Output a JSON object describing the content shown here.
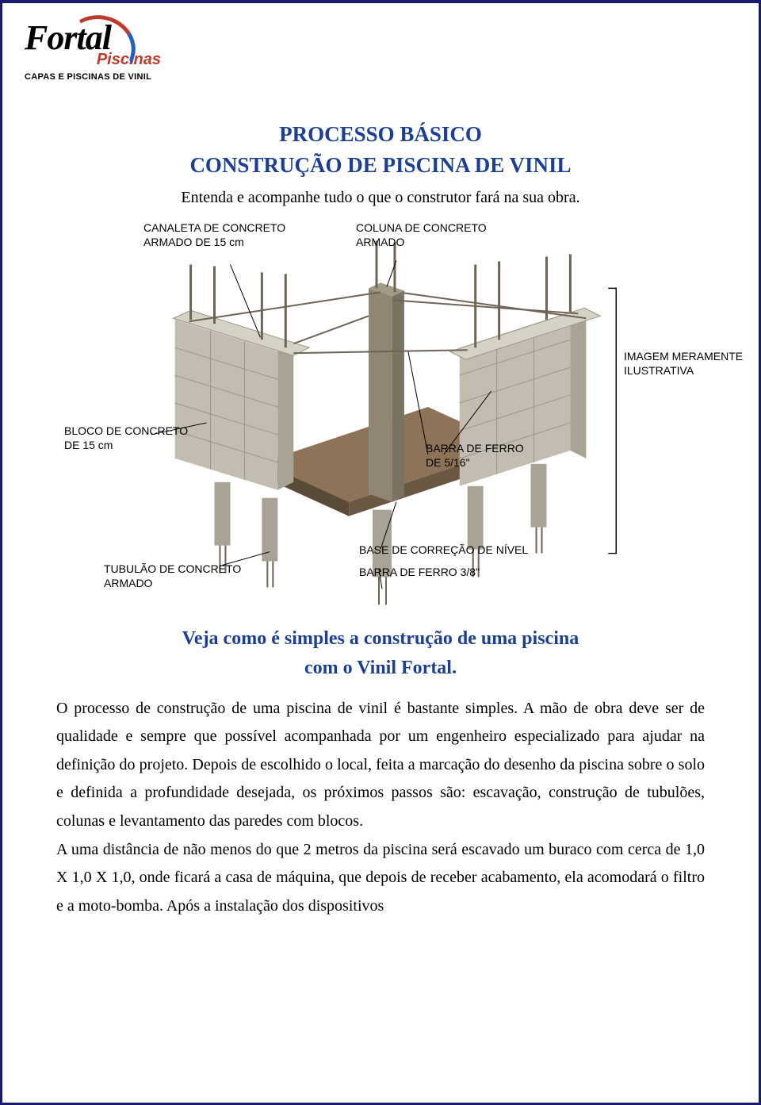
{
  "logo": {
    "main": "Fortal",
    "sub": "Piscinas",
    "tagline": "CAPAS E PISCINAS DE VINIL"
  },
  "header": {
    "title_line1": "PROCESSO BÁSICO",
    "title_line2": "CONSTRUÇÃO DE PISCINA DE VINIL",
    "intro": "Entenda e acompanhe tudo o que o construtor fará na sua obra."
  },
  "diagram": {
    "labels": {
      "canaleta": "CANALETA DE CONCRETO\nARMADO DE 15 cm",
      "coluna": "COLUNA DE CONCRETO\nARMADO",
      "imagem": "IMAGEM MERAMENTE\nILUSTRATIVA",
      "bloco": "BLOCO DE CONCRETO\nDE 15 cm",
      "barra516": "BARRA DE FERRO\nDE 5/16\"",
      "tubulao": "TUBULÃO DE CONCRETO\nARMADO",
      "base": "BASE DE CORREÇÃO DE NÍVEL",
      "barra38": "BARRA DE FERRO 3/8\""
    },
    "colors": {
      "concrete_light": "#d6d2c6",
      "concrete_mid": "#c2bdb0",
      "concrete_dark": "#a8a394",
      "column": "#8f8773",
      "base_dark": "#5a4a38",
      "base_light": "#8d7458",
      "rebar": "#6d6456",
      "line": "#000000",
      "bracket": "#000000"
    },
    "label_font_size": 14
  },
  "subheading": {
    "line1": "Veja como é simples a construção de uma piscina",
    "line2": "com o Vinil Fortal."
  },
  "body": {
    "p1": "O processo de construção de uma piscina de vinil é bastante simples. A mão de obra deve ser de qualidade e sempre que possível acompanhada por um engenheiro especializado para ajudar na definição do projeto. Depois de escolhido o local, feita a marcação do desenho da piscina sobre o solo e definida a profundidade desejada, os próximos passos são: escavação, construção de tubulões, colunas e levantamento das paredes com blocos.",
    "p2": "A uma distância de não menos do que 2 metros da piscina será escavado um buraco com cerca de 1,0 X 1,0 X 1,0, onde ficará a casa de máquina, que depois de receber acabamento, ela acomodará o filtro e a moto-bomba. Após a instalação dos dispositivos"
  }
}
